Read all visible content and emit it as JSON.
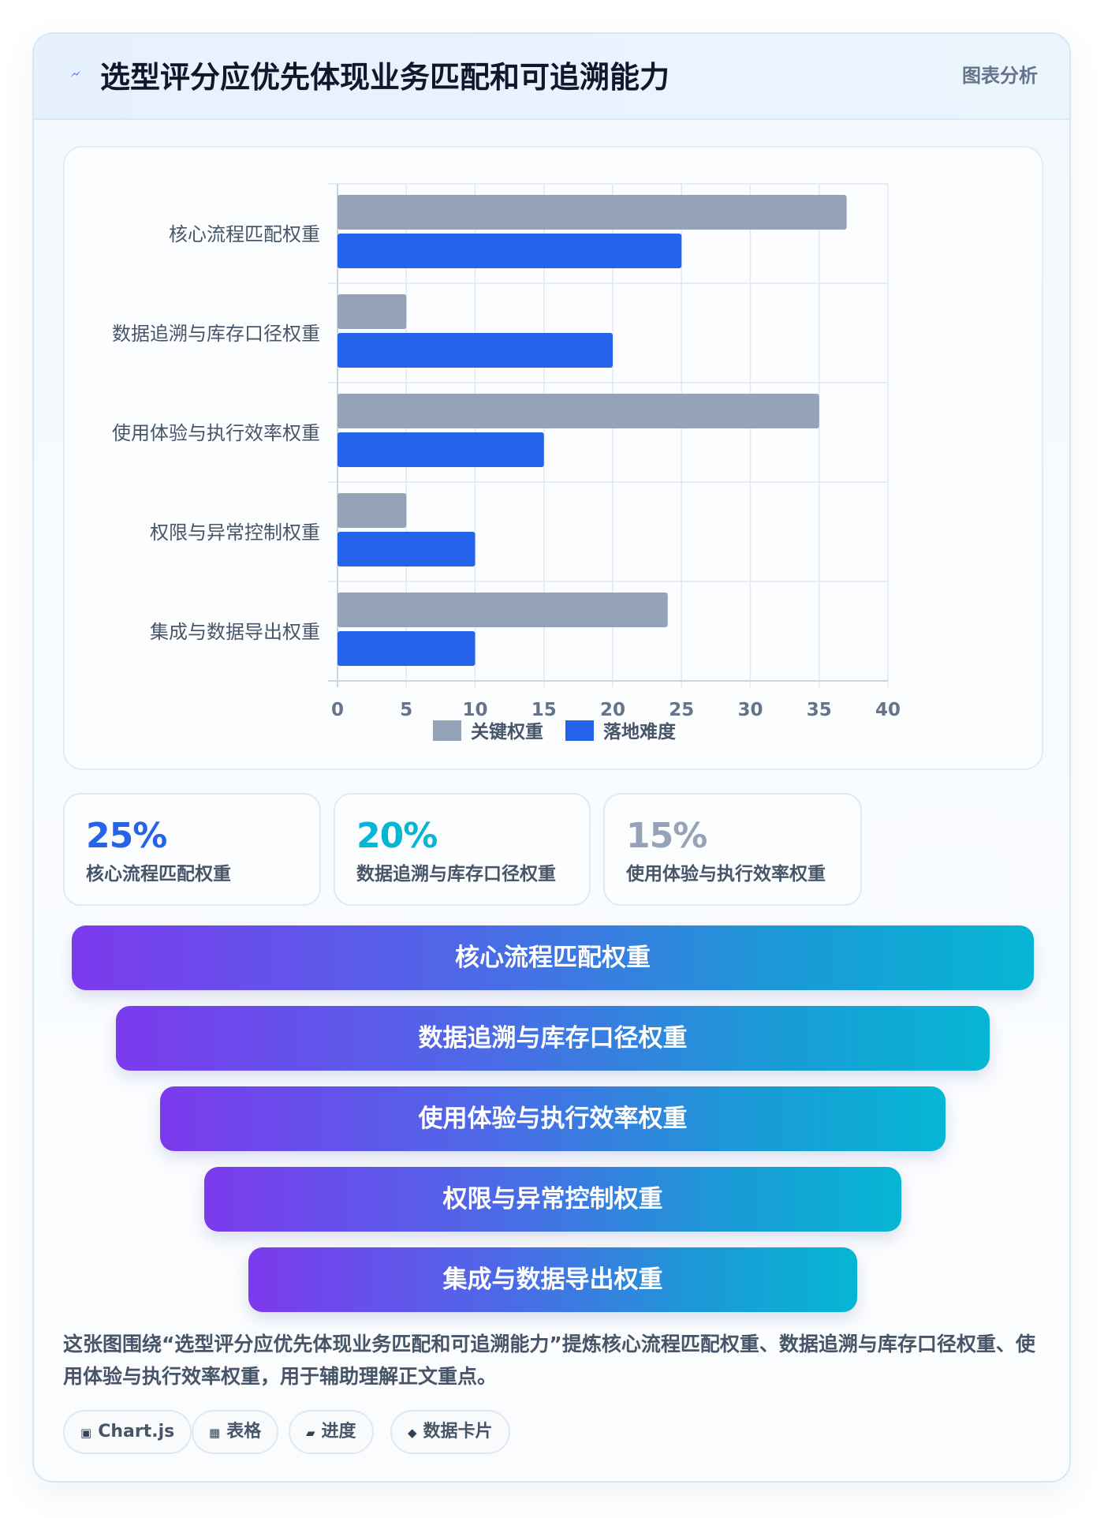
{
  "header": {
    "icon": "lightning-icon",
    "title": "选型评分应优先体现业务匹配和可追溯能力",
    "tag": "图表分析"
  },
  "chart_data": {
    "type": "bar",
    "orientation": "horizontal",
    "categories": [
      "核心流程匹配权重",
      "数据追溯与库存口径权重",
      "使用体验与执行效率权重",
      "权限与异常控制权重",
      "集成与数据导出权重"
    ],
    "series": [
      {
        "name": "关键权重",
        "color": "#94a3b8",
        "values": [
          37,
          5,
          35,
          5,
          24
        ]
      },
      {
        "name": "落地难度",
        "color": "#2563eb",
        "values": [
          25,
          20,
          15,
          10,
          10
        ]
      }
    ],
    "xticks": [
      "0",
      "5",
      "10",
      "15",
      "20",
      "25",
      "30",
      "35",
      "40"
    ],
    "xlim": [
      0,
      40
    ],
    "grid": true,
    "legend": "bottom"
  },
  "stats": [
    {
      "value": "25%",
      "label": "核心流程匹配权重",
      "color": "#2563eb"
    },
    {
      "value": "20%",
      "label": "数据追溯与库存口径权重",
      "color": "#06b6d4"
    },
    {
      "value": "15%",
      "label": "使用体验与执行效率权重",
      "color": "#94a3b8"
    }
  ],
  "funnel": [
    "核心流程匹配权重",
    "数据追溯与库存口径权重",
    "使用体验与执行效率权重",
    "权限与异常控制权重",
    "集成与数据导出权重"
  ],
  "description": "这张图围绕“选型评分应优先体现业务匹配和可追溯能力”提炼核心流程匹配权重、数据追溯与库存口径权重、使用体验与执行效率权重，用于辅助理解正文重点。",
  "tags": [
    {
      "icon": "▣",
      "label": "Chart.js"
    },
    {
      "icon": "▦",
      "label": "表格"
    },
    {
      "icon": "▰",
      "label": "进度"
    },
    {
      "icon": "◆",
      "label": "数据卡片"
    }
  ]
}
